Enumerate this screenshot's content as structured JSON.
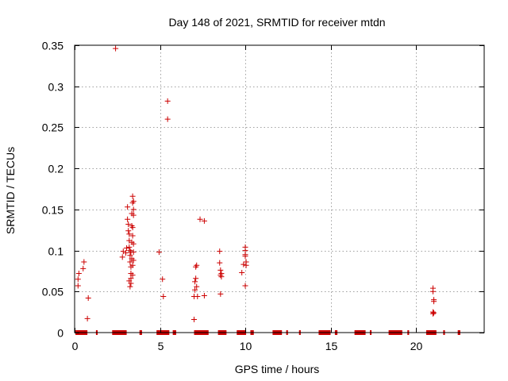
{
  "chart_data": {
    "type": "scatter",
    "title": "Day 148 of 2021, SRMTID for receiver mtdn",
    "xlabel": "GPS time / hours",
    "ylabel": "SRMTID / TECUs",
    "xlim": [
      0,
      24
    ],
    "ylim": [
      0,
      0.35
    ],
    "xticks": [
      0,
      5,
      10,
      15,
      20
    ],
    "xtick_labels": [
      "0",
      "5",
      "10",
      "15",
      "20"
    ],
    "yticks": [
      0,
      0.05,
      0.1,
      0.15,
      0.2,
      0.25,
      0.3,
      0.35
    ],
    "ytick_labels": [
      "0",
      "0.05",
      "0.1",
      "0.15",
      "0.2",
      "0.25",
      "0.3",
      "0.35"
    ],
    "grid": true,
    "marker": "+",
    "series": [
      {
        "name": "SRMTID",
        "color": "#cc0000",
        "points": [
          [
            0.2,
            0.057
          ],
          [
            0.2,
            0.065
          ],
          [
            0.25,
            0.072
          ],
          [
            0.5,
            0.078
          ],
          [
            0.55,
            0.086
          ],
          [
            0.75,
            0.017
          ],
          [
            0.8,
            0.042
          ],
          [
            2.4,
            0.346
          ],
          [
            2.8,
            0.092
          ],
          [
            2.85,
            0.099
          ],
          [
            3.0,
            0.097
          ],
          [
            3.05,
            0.103
          ],
          [
            3.1,
            0.138
          ],
          [
            3.1,
            0.153
          ],
          [
            3.15,
            0.124
          ],
          [
            3.15,
            0.132
          ],
          [
            3.2,
            0.12
          ],
          [
            3.2,
            0.112
          ],
          [
            3.2,
            0.104
          ],
          [
            3.25,
            0.1
          ],
          [
            3.25,
            0.094
          ],
          [
            3.25,
            0.086
          ],
          [
            3.3,
            0.08
          ],
          [
            3.3,
            0.072
          ],
          [
            3.3,
            0.066
          ],
          [
            3.3,
            0.06
          ],
          [
            3.25,
            0.056
          ],
          [
            3.2,
            0.063
          ],
          [
            3.35,
            0.13
          ],
          [
            3.35,
            0.145
          ],
          [
            3.35,
            0.09
          ],
          [
            3.4,
            0.158
          ],
          [
            3.4,
            0.166
          ],
          [
            3.45,
            0.16
          ],
          [
            3.45,
            0.15
          ],
          [
            3.45,
            0.143
          ],
          [
            3.4,
            0.128
          ],
          [
            3.4,
            0.118
          ],
          [
            3.45,
            0.108
          ],
          [
            3.45,
            0.098
          ],
          [
            3.45,
            0.088
          ],
          [
            3.4,
            0.082
          ],
          [
            3.4,
            0.07
          ],
          [
            3.35,
            0.11
          ],
          [
            3.3,
            0.098
          ],
          [
            4.95,
            0.098
          ],
          [
            5.15,
            0.065
          ],
          [
            5.2,
            0.044
          ],
          [
            5.45,
            0.282
          ],
          [
            5.45,
            0.26
          ],
          [
            7.0,
            0.016
          ],
          [
            7.0,
            0.044
          ],
          [
            7.05,
            0.052
          ],
          [
            7.05,
            0.062
          ],
          [
            7.1,
            0.066
          ],
          [
            7.1,
            0.08
          ],
          [
            7.15,
            0.082
          ],
          [
            7.15,
            0.056
          ],
          [
            7.2,
            0.044
          ],
          [
            7.35,
            0.138
          ],
          [
            7.6,
            0.136
          ],
          [
            7.6,
            0.045
          ],
          [
            8.5,
            0.099
          ],
          [
            8.5,
            0.085
          ],
          [
            8.55,
            0.076
          ],
          [
            8.6,
            0.072
          ],
          [
            8.6,
            0.068
          ],
          [
            8.55,
            0.047
          ],
          [
            8.55,
            0.07
          ],
          [
            9.8,
            0.073
          ],
          [
            9.9,
            0.083
          ],
          [
            10.0,
            0.1
          ],
          [
            10.0,
            0.104
          ],
          [
            10.0,
            0.093
          ],
          [
            10.0,
            0.095
          ],
          [
            10.05,
            0.086
          ],
          [
            10.05,
            0.082
          ],
          [
            10.0,
            0.057
          ],
          [
            21.0,
            0.054
          ],
          [
            21.0,
            0.05
          ],
          [
            21.05,
            0.04
          ],
          [
            21.05,
            0.038
          ],
          [
            21.0,
            0.025
          ],
          [
            21.05,
            0.024
          ],
          [
            21.0,
            0.023
          ]
        ],
        "zero_segments": [
          [
            0.05,
            0.75
          ],
          [
            1.25,
            1.35
          ],
          [
            2.2,
            3.05
          ],
          [
            3.8,
            3.95
          ],
          [
            4.8,
            5.55
          ],
          [
            5.75,
            5.95
          ],
          [
            7.0,
            7.85
          ],
          [
            8.4,
            8.9
          ],
          [
            9.5,
            10.05
          ],
          [
            10.3,
            10.5
          ],
          [
            11.6,
            12.15
          ],
          [
            12.4,
            12.5
          ],
          [
            13.15,
            13.25
          ],
          [
            14.3,
            15.0
          ],
          [
            15.25,
            15.4
          ],
          [
            16.4,
            17.05
          ],
          [
            17.3,
            17.4
          ],
          [
            18.4,
            19.2
          ],
          [
            19.5,
            19.6
          ],
          [
            20.6,
            21.2
          ],
          [
            21.6,
            21.7
          ],
          [
            22.45,
            22.6
          ]
        ]
      }
    ]
  }
}
